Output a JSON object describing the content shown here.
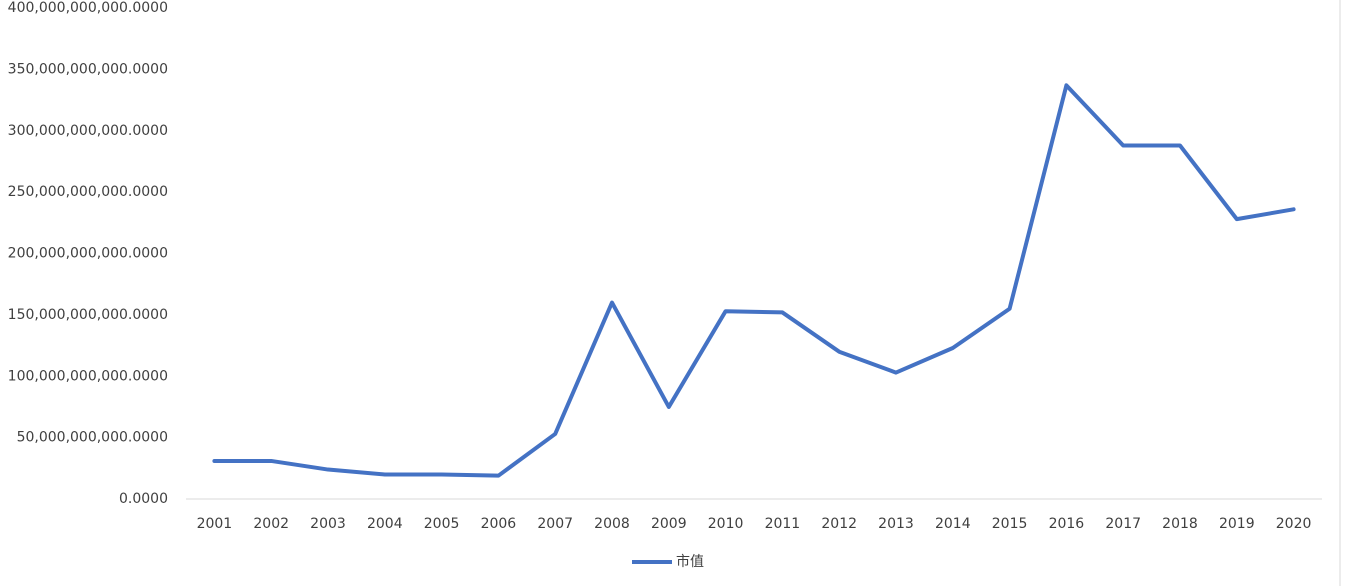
{
  "chart_data": {
    "type": "line",
    "categories": [
      "2001",
      "2002",
      "2003",
      "2004",
      "2005",
      "2006",
      "2007",
      "2008",
      "2009",
      "2010",
      "2011",
      "2012",
      "2013",
      "2014",
      "2015",
      "2016",
      "2017",
      "2018",
      "2019",
      "2020"
    ],
    "series": [
      {
        "name": "市值",
        "color": "#4472c4",
        "values": [
          31000000000,
          31000000000,
          24000000000,
          20000000000,
          20000000000,
          19000000000,
          53000000000,
          160000000000,
          75000000000,
          153000000000,
          152000000000,
          120000000000,
          103000000000,
          123000000000,
          155000000000,
          337000000000,
          288000000000,
          288000000000,
          228000000000,
          236000000000
        ]
      }
    ],
    "ylim": [
      0,
      400000000000
    ],
    "yticks": [
      {
        "value": 0,
        "label": "0.0000"
      },
      {
        "value": 50000000000,
        "label": "50,000,000,000.0000"
      },
      {
        "value": 100000000000,
        "label": "100,000,000,000.0000"
      },
      {
        "value": 150000000000,
        "label": "150,000,000,000.0000"
      },
      {
        "value": 200000000000,
        "label": "200,000,000,000.0000"
      },
      {
        "value": 250000000000,
        "label": "250,000,000,000.0000"
      },
      {
        "value": 300000000000,
        "label": "300,000,000,000.0000"
      },
      {
        "value": 350000000000,
        "label": "350,000,000,000.0000"
      },
      {
        "value": 400000000000,
        "label": "400,000,000,000.0000"
      }
    ],
    "grid": false,
    "legend": "bottom"
  }
}
